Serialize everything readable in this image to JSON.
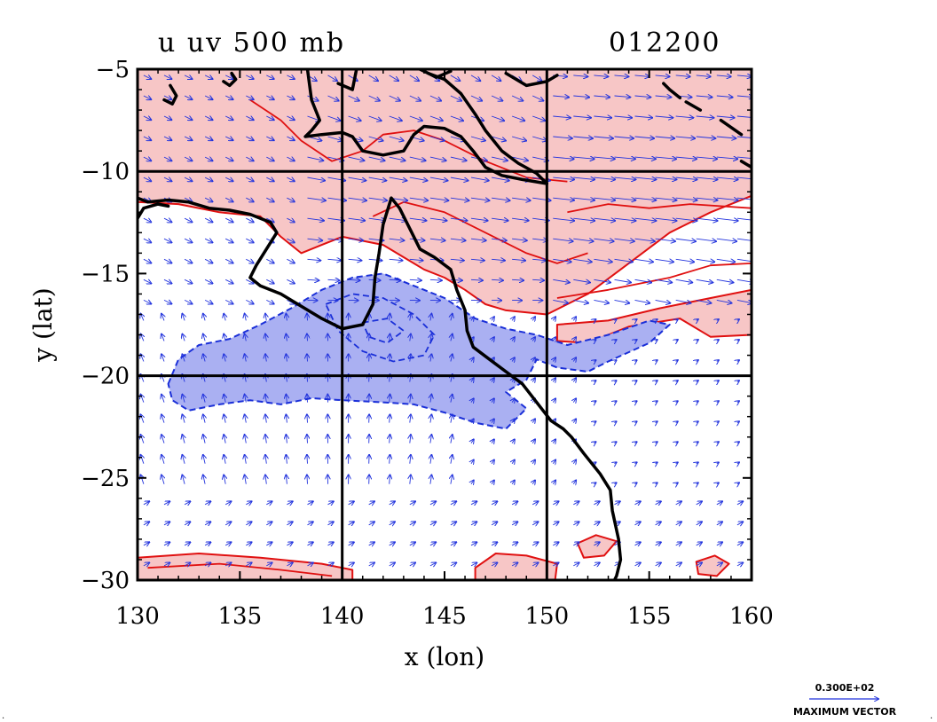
{
  "chart_data": {
    "type": "heatmap",
    "title_left": "u uv 500 mb",
    "title_right": "012200",
    "xlabel": "x (lon)",
    "ylabel": "y (lat)",
    "xlim": [
      130,
      160
    ],
    "ylim": [
      -30,
      -5
    ],
    "x_ticks": [
      130,
      135,
      140,
      145,
      150,
      155,
      160
    ],
    "y_ticks": [
      -5,
      -10,
      -15,
      -20,
      -25,
      -30
    ],
    "x_tick_labels": [
      "130",
      "135",
      "140",
      "145",
      "150",
      "155",
      "160"
    ],
    "y_tick_labels": [
      "−5",
      "−10",
      "−15",
      "−20",
      "−25",
      "−30"
    ],
    "grid_lon": [
      140,
      150
    ],
    "grid_lat": [
      -10,
      -20
    ],
    "vector_reference": {
      "magnitude_label": "0.300E+02",
      "label": "MAXIMUM VECTOR"
    },
    "colors": {
      "positive_fill": "#f7c6c6",
      "positive_contour": "#e01010",
      "negative_fill": "#aab0f2",
      "negative_contour": "#1a2fd8",
      "vectors": "#2233dd",
      "coastline": "#000000"
    },
    "positive_regions": [
      [
        [
          130,
          -5
        ],
        [
          160,
          -5
        ],
        [
          160,
          -11.2
        ],
        [
          158,
          -12
        ],
        [
          156,
          -13
        ],
        [
          154,
          -14.5
        ],
        [
          152,
          -16
        ],
        [
          150,
          -17
        ],
        [
          148,
          -16.8
        ],
        [
          147,
          -16.5
        ],
        [
          146,
          -15.8
        ],
        [
          145,
          -15.2
        ],
        [
          144,
          -14.8
        ],
        [
          143,
          -14.2
        ],
        [
          142,
          -13.6
        ],
        [
          141,
          -13.4
        ],
        [
          140,
          -13.2
        ],
        [
          139,
          -13.6
        ],
        [
          138,
          -14
        ],
        [
          137,
          -13.2
        ],
        [
          136,
          -12.2
        ],
        [
          134,
          -12
        ],
        [
          132,
          -11.6
        ],
        [
          130,
          -11.5
        ]
      ],
      [
        [
          150.5,
          -17.5
        ],
        [
          153,
          -17.3
        ],
        [
          155.5,
          -16.7
        ],
        [
          158,
          -16.2
        ],
        [
          160,
          -15.8
        ],
        [
          160,
          -18
        ],
        [
          158,
          -18.1
        ],
        [
          156.5,
          -17.2
        ],
        [
          154,
          -17.6
        ],
        [
          152,
          -18.4
        ],
        [
          150.5,
          -18.3
        ]
      ],
      [
        [
          130,
          -28.9
        ],
        [
          133,
          -28.7
        ],
        [
          136,
          -28.9
        ],
        [
          139,
          -29.2
        ],
        [
          140.5,
          -29.5
        ],
        [
          140.5,
          -30
        ],
        [
          130,
          -30
        ]
      ],
      [
        [
          146.5,
          -29.4
        ],
        [
          147.5,
          -28.7
        ],
        [
          149,
          -28.8
        ],
        [
          150.5,
          -29.2
        ],
        [
          150.4,
          -30
        ],
        [
          146.5,
          -30
        ]
      ],
      [
        [
          151.5,
          -28.2
        ],
        [
          152.4,
          -27.8
        ],
        [
          153.4,
          -28.1
        ],
        [
          152.8,
          -28.8
        ],
        [
          151.8,
          -28.9
        ]
      ],
      [
        [
          157.3,
          -29.1
        ],
        [
          158.2,
          -28.8
        ],
        [
          158.9,
          -29.2
        ],
        [
          158.3,
          -29.8
        ],
        [
          157.4,
          -29.7
        ]
      ]
    ],
    "inner_positive_contours": [
      [
        [
          135.5,
          -6.5
        ],
        [
          137,
          -7.5
        ],
        [
          138,
          -8.5
        ],
        [
          139.5,
          -9.5
        ],
        [
          141,
          -9
        ],
        [
          142,
          -8.2
        ],
        [
          143.5,
          -8
        ],
        [
          145,
          -8.5
        ],
        [
          147,
          -9.5
        ],
        [
          149,
          -10.3
        ],
        [
          151,
          -10.5
        ]
      ],
      [
        [
          141.5,
          -12.2
        ],
        [
          143,
          -11.5
        ],
        [
          145,
          -12
        ],
        [
          147,
          -13
        ],
        [
          149,
          -14
        ],
        [
          150.5,
          -14.5
        ],
        [
          152,
          -14
        ]
      ],
      [
        [
          151,
          -12
        ],
        [
          153,
          -11.6
        ],
        [
          155,
          -11.8
        ],
        [
          157,
          -11.6
        ],
        [
          160,
          -11.8
        ]
      ],
      [
        [
          150.5,
          -16.2
        ],
        [
          153,
          -15.8
        ],
        [
          156,
          -15.2
        ],
        [
          158,
          -14.6
        ],
        [
          160,
          -14.5
        ]
      ],
      [
        [
          130.5,
          -29.4
        ],
        [
          134,
          -29.2
        ],
        [
          137,
          -29.5
        ],
        [
          139.5,
          -29.8
        ]
      ]
    ],
    "negative_regions": [
      [
        [
          131.5,
          -20.4
        ],
        [
          132,
          -19.2
        ],
        [
          133,
          -18.5
        ],
        [
          134.5,
          -18.2
        ],
        [
          136,
          -17.5
        ],
        [
          137.5,
          -16.7
        ],
        [
          139,
          -15.8
        ],
        [
          140.5,
          -15.2
        ],
        [
          142,
          -15
        ],
        [
          143.5,
          -15.6
        ],
        [
          145,
          -16.2
        ],
        [
          146.5,
          -17.2
        ],
        [
          148,
          -17.7
        ],
        [
          149.5,
          -18
        ],
        [
          151,
          -18.5
        ],
        [
          153,
          -18
        ],
        [
          155,
          -17.3
        ],
        [
          156,
          -17.5
        ],
        [
          155,
          -18.4
        ],
        [
          153,
          -19.3
        ],
        [
          152,
          -19.8
        ],
        [
          150.5,
          -19.6
        ],
        [
          149.5,
          -19.2
        ],
        [
          149,
          -20.2
        ],
        [
          148,
          -20.8
        ],
        [
          149,
          -21.6
        ],
        [
          148,
          -22.6
        ],
        [
          146.5,
          -22.3
        ],
        [
          145,
          -21.8
        ],
        [
          143.5,
          -21.4
        ],
        [
          142,
          -21.3
        ],
        [
          140,
          -21.2
        ],
        [
          138.5,
          -21.1
        ],
        [
          137,
          -21.4
        ],
        [
          135.5,
          -21.2
        ],
        [
          134,
          -21.4
        ],
        [
          132.5,
          -21.7
        ],
        [
          131.7,
          -21.2
        ]
      ]
    ],
    "inner_negative_contours": [
      [
        [
          139.2,
          -16.5
        ],
        [
          140.5,
          -16
        ],
        [
          142,
          -16.2
        ],
        [
          143.5,
          -17
        ],
        [
          144.5,
          -18
        ],
        [
          144,
          -19
        ],
        [
          142.5,
          -19.3
        ],
        [
          141,
          -18.8
        ],
        [
          139.8,
          -17.8
        ]
      ],
      [
        [
          141,
          -17.4
        ],
        [
          142.2,
          -17.2
        ],
        [
          143,
          -17.8
        ],
        [
          142.2,
          -18.4
        ],
        [
          141.3,
          -18.1
        ]
      ]
    ],
    "coastlines": [
      [
        [
          130,
          -11.3
        ],
        [
          130.5,
          -11.5
        ],
        [
          131.5,
          -11.4
        ],
        [
          132.5,
          -11.5
        ],
        [
          133.5,
          -11.8
        ],
        [
          134.5,
          -11.9
        ],
        [
          135.5,
          -12.1
        ],
        [
          136.5,
          -12.5
        ],
        [
          136.8,
          -13
        ],
        [
          136.3,
          -13.8
        ],
        [
          135.8,
          -14.6
        ],
        [
          135.5,
          -15.2
        ],
        [
          136,
          -15.6
        ],
        [
          137,
          -16
        ],
        [
          138,
          -16.6
        ],
        [
          139,
          -17.2
        ],
        [
          140,
          -17.7
        ],
        [
          141,
          -17.5
        ],
        [
          141.5,
          -16.5
        ],
        [
          141.6,
          -15.2
        ],
        [
          141.8,
          -14
        ],
        [
          142,
          -12.6
        ],
        [
          142.4,
          -11.3
        ],
        [
          142.8,
          -11.8
        ],
        [
          143.3,
          -12.8
        ],
        [
          143.8,
          -13.8
        ],
        [
          144.5,
          -14.2
        ],
        [
          145.3,
          -14.8
        ],
        [
          145.6,
          -15.8
        ],
        [
          146,
          -16.8
        ],
        [
          146.1,
          -17.8
        ],
        [
          146.4,
          -18.6
        ],
        [
          147.2,
          -19.2
        ],
        [
          148,
          -19.8
        ],
        [
          148.8,
          -20.4
        ],
        [
          149.5,
          -21.3
        ],
        [
          150.2,
          -22.2
        ],
        [
          150.8,
          -22.6
        ],
        [
          151.2,
          -23
        ],
        [
          151.8,
          -23.8
        ],
        [
          152.6,
          -24.8
        ],
        [
          153.1,
          -25.6
        ],
        [
          153.2,
          -26.6
        ],
        [
          153.5,
          -28
        ],
        [
          153.6,
          -29
        ],
        [
          153.4,
          -29.8
        ],
        [
          153.3,
          -30
        ]
      ],
      [
        [
          130,
          -12.3
        ],
        [
          130.3,
          -11.8
        ],
        [
          131,
          -11.6
        ],
        [
          131.5,
          -11.7
        ]
      ],
      [
        [
          138.3,
          -5
        ],
        [
          138.5,
          -6.5
        ],
        [
          138.9,
          -7.5
        ],
        [
          138.5,
          -8
        ],
        [
          138.2,
          -8.3
        ],
        [
          139,
          -8.2
        ],
        [
          140,
          -8.1
        ],
        [
          140.5,
          -8.3
        ],
        [
          141,
          -9
        ],
        [
          142,
          -9.2
        ],
        [
          143,
          -9
        ],
        [
          143.5,
          -8.2
        ],
        [
          144,
          -7.8
        ],
        [
          145,
          -7.9
        ],
        [
          145.8,
          -8.3
        ],
        [
          146.4,
          -9
        ],
        [
          147,
          -9.8
        ],
        [
          147.8,
          -10.2
        ],
        [
          148.8,
          -10.4
        ],
        [
          150,
          -10.6
        ],
        [
          149.5,
          -10.1
        ],
        [
          148.6,
          -9.6
        ],
        [
          147.8,
          -9
        ],
        [
          147,
          -8
        ],
        [
          146.5,
          -7.2
        ],
        [
          145.8,
          -6.2
        ],
        [
          145,
          -5.5
        ],
        [
          144.2,
          -5.2
        ],
        [
          143.8,
          -5
        ]
      ],
      [
        [
          144.2,
          -5.2
        ],
        [
          144.6,
          -5.4
        ],
        [
          145.3,
          -5.1
        ]
      ],
      [
        [
          139.8,
          -5.7
        ],
        [
          140.5,
          -6
        ],
        [
          140.7,
          -5
        ]
      ],
      [
        [
          134.2,
          -5.6
        ],
        [
          134.5,
          -5.8
        ],
        [
          134.8,
          -5.5
        ],
        [
          134.6,
          -5.2
        ]
      ],
      [
        [
          131.3,
          -6.5
        ],
        [
          131.7,
          -6.7
        ],
        [
          131.9,
          -6.3
        ],
        [
          131.6,
          -5.8
        ]
      ],
      [
        [
          148,
          -5.2
        ],
        [
          149,
          -5.8
        ],
        [
          150,
          -5.6
        ],
        [
          150.5,
          -5.3
        ]
      ],
      [
        [
          155.7,
          -5.7
        ],
        [
          156,
          -6
        ],
        [
          156.5,
          -6.4
        ]
      ],
      [
        [
          156.8,
          -6.6
        ],
        [
          157.5,
          -7
        ]
      ],
      [
        [
          158.5,
          -7.5
        ],
        [
          159.5,
          -8.2
        ]
      ],
      [
        [
          159.5,
          -9.5
        ],
        [
          160,
          -9.8
        ]
      ]
    ]
  }
}
